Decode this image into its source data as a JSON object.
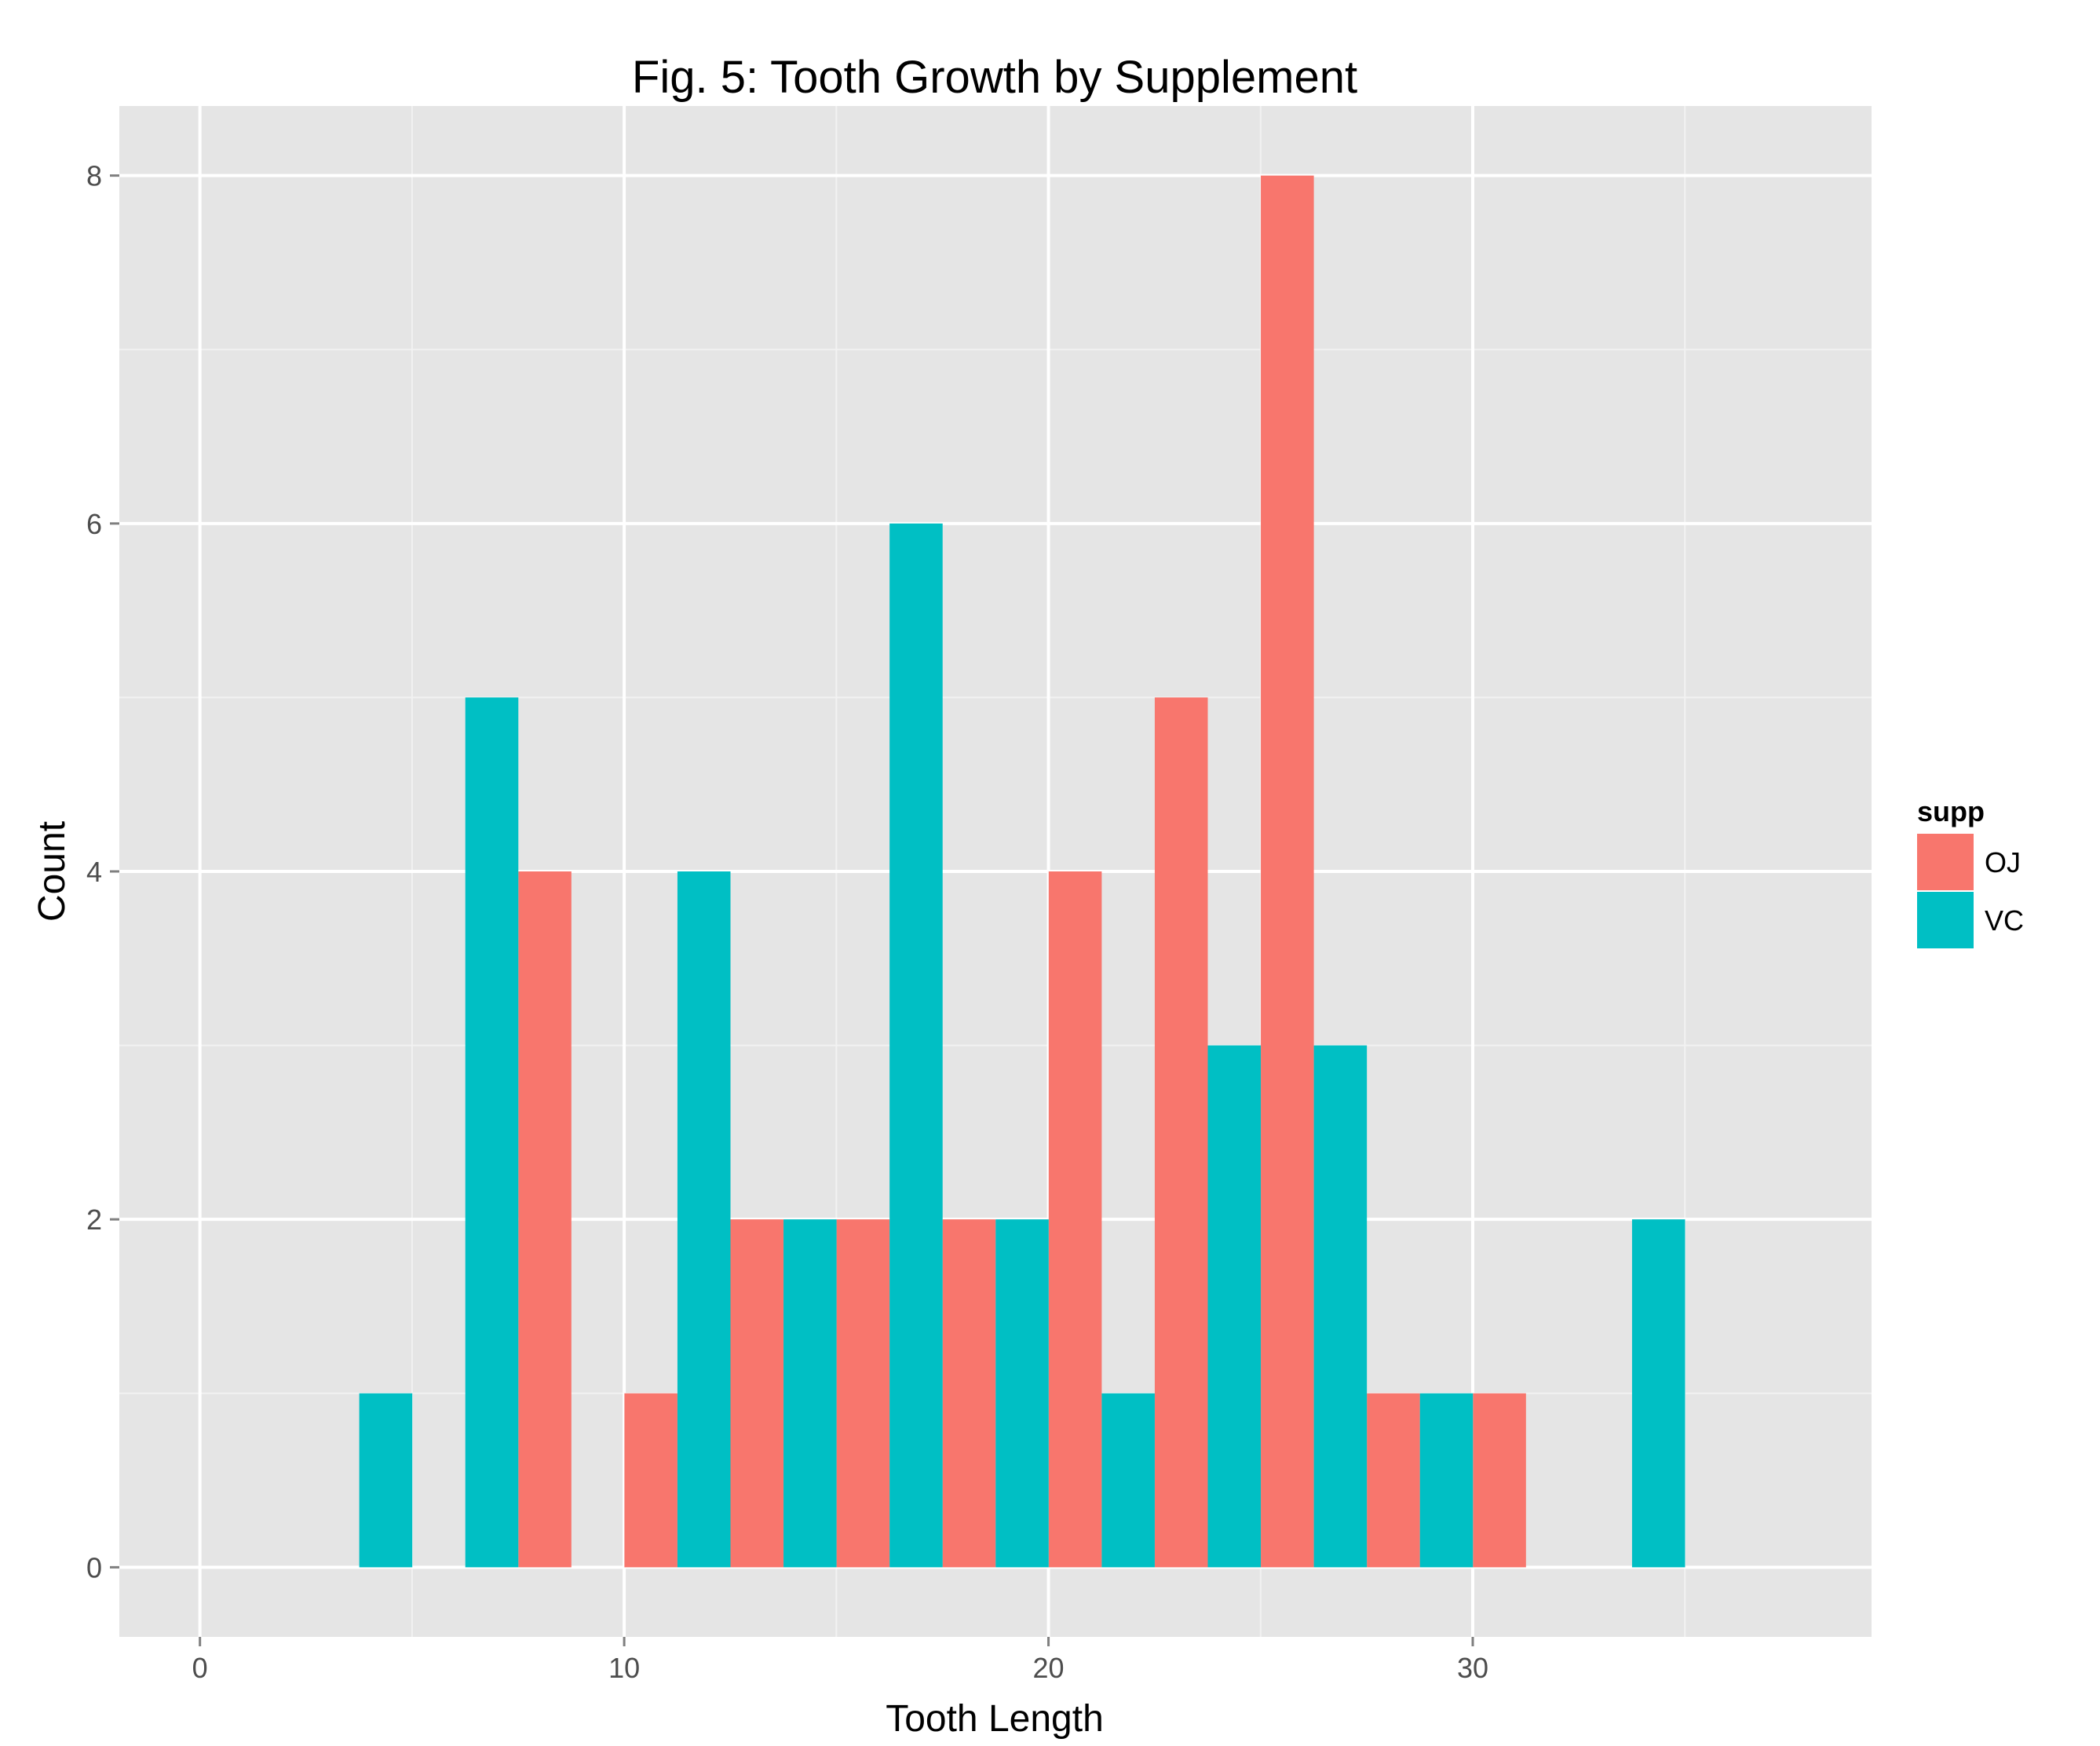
{
  "chart_data": {
    "type": "bar",
    "title": "Fig. 5: Tooth Growth by Supplement",
    "xlabel": "Tooth Length",
    "ylabel": "Count",
    "xlim": [
      -1.9,
      39.4
    ],
    "ylim": [
      -0.4,
      8.4
    ],
    "x_ticks": [
      0,
      10,
      20,
      30
    ],
    "y_ticks": [
      0,
      2,
      4,
      6,
      8
    ],
    "grid": true,
    "bin_width": 2.5,
    "legend": {
      "title": "supp",
      "position": "right",
      "entries": [
        {
          "name": "OJ",
          "color": "#F8766D"
        },
        {
          "name": "VC",
          "color": "#00BFC4"
        }
      ]
    },
    "series": [
      {
        "name": "OJ",
        "color": "#F8766D",
        "bins": [
          {
            "x": 8.13,
            "count": 4
          },
          {
            "x": 10.63,
            "count": 1
          },
          {
            "x": 13.13,
            "count": 2
          },
          {
            "x": 15.63,
            "count": 2
          },
          {
            "x": 18.13,
            "count": 2
          },
          {
            "x": 20.63,
            "count": 4
          },
          {
            "x": 23.13,
            "count": 5
          },
          {
            "x": 25.63,
            "count": 8
          },
          {
            "x": 28.13,
            "count": 1
          },
          {
            "x": 30.63,
            "count": 1
          }
        ]
      },
      {
        "name": "VC",
        "color": "#00BFC4",
        "bins": [
          {
            "x": 4.38,
            "count": 1
          },
          {
            "x": 6.88,
            "count": 5
          },
          {
            "x": 11.88,
            "count": 4
          },
          {
            "x": 14.38,
            "count": 2
          },
          {
            "x": 16.88,
            "count": 6
          },
          {
            "x": 19.38,
            "count": 2
          },
          {
            "x": 21.88,
            "count": 1
          },
          {
            "x": 24.38,
            "count": 3
          },
          {
            "x": 26.88,
            "count": 3
          },
          {
            "x": 29.38,
            "count": 1
          },
          {
            "x": 34.38,
            "count": 2
          }
        ]
      }
    ]
  }
}
